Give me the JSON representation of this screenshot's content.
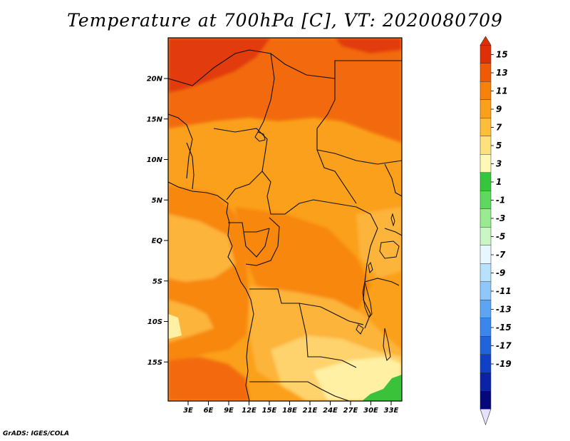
{
  "title": "Temperature at 700hPa [C], VT: 2020080709",
  "credit": "GrADS: IGES/COLA",
  "lat_ticks": [
    {
      "label": "20N",
      "value": 20
    },
    {
      "label": "15N",
      "value": 15
    },
    {
      "label": "10N",
      "value": 10
    },
    {
      "label": "5N",
      "value": 5
    },
    {
      "label": "EQ",
      "value": 0
    },
    {
      "label": "5S",
      "value": -5
    },
    {
      "label": "10S",
      "value": -10
    },
    {
      "label": "15S",
      "value": -15
    }
  ],
  "lon_ticks": [
    {
      "label": "3E",
      "value": 3
    },
    {
      "label": "6E",
      "value": 6
    },
    {
      "label": "9E",
      "value": 9
    },
    {
      "label": "12E",
      "value": 12
    },
    {
      "label": "15E",
      "value": 15
    },
    {
      "label": "18E",
      "value": 18
    },
    {
      "label": "21E",
      "value": 21
    },
    {
      "label": "24E",
      "value": 24
    },
    {
      "label": "27E",
      "value": 27
    },
    {
      "label": "30E",
      "value": 30
    },
    {
      "label": "33E",
      "value": 33
    }
  ],
  "colorbar": {
    "labels": [
      "15",
      "13",
      "11",
      "9",
      "7",
      "5",
      "3",
      "1",
      "-1",
      "-3",
      "-5",
      "-7",
      "-9",
      "-11",
      "-13",
      "-15",
      "-17",
      "-19"
    ],
    "colors": [
      "#de2f07",
      "#f05a05",
      "#f7820a",
      "#fba01b",
      "#fdbe3a",
      "#fee17c",
      "#fff7b5",
      "#35c63d",
      "#5fd860",
      "#98eb8f",
      "#c9f7c4",
      "#e6f7ff",
      "#b8e1fd",
      "#8fc7fa",
      "#5da5f2",
      "#3a86ec",
      "#2163dd",
      "#1040c8",
      "#0a21a8",
      "#050878"
    ],
    "over_color": "#de2f07",
    "under_color": "#e6e2fb"
  },
  "field_colors": {
    "t14": "#e23a0b",
    "t12": "#f26a0c",
    "t10": "#f7870f",
    "t9": "#fba01a",
    "t8": "#fcb43a",
    "t6": "#fed26c",
    "t4": "#fff0a3",
    "t2": "#3ac23a"
  }
}
